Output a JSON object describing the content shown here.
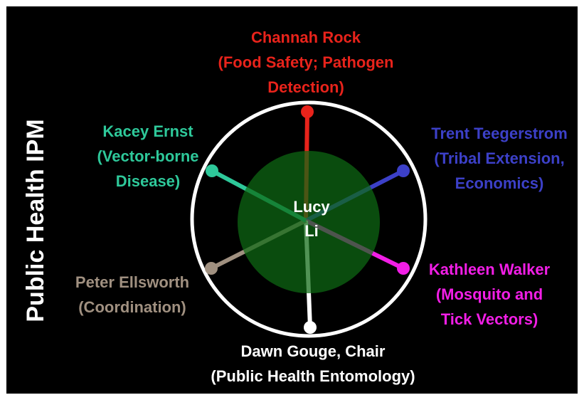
{
  "title": "Public Health IPM",
  "center": {
    "lines": [
      "Lucy",
      "Li"
    ]
  },
  "nodes": [
    {
      "lines": [
        "Channah Rock",
        "(Food Safety; Pathogen",
        "Detection)"
      ],
      "color": "#e8231b"
    },
    {
      "lines": [
        "Trent Teegerstrom",
        "(Tribal Extension,",
        "Economics)"
      ],
      "color": "#3c40c8"
    },
    {
      "lines": [
        "Kathleen Walker",
        "(Mosquito and",
        "Tick Vectors)"
      ],
      "color": "#f21ee6"
    },
    {
      "lines": [
        "Dawn Gouge, Chair",
        "(Public Health Entomology)"
      ],
      "color": "#ffffff"
    },
    {
      "lines": [
        "Peter Ellsworth",
        "(Coordination)"
      ],
      "color": "#a09080"
    },
    {
      "lines": [
        "Kacey Ernst",
        "(Vector-borne",
        "Disease)"
      ],
      "color": "#2ec89a"
    }
  ]
}
